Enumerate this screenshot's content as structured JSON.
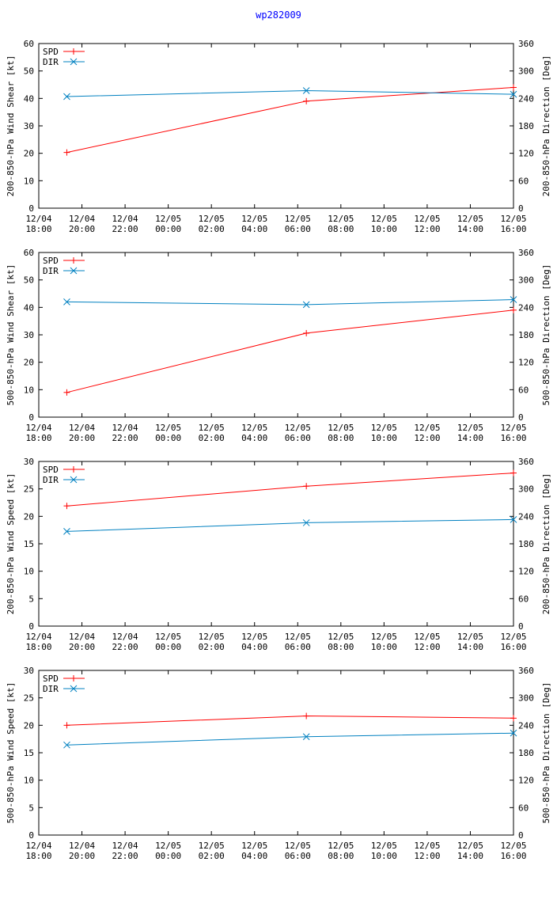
{
  "title": "wp282009",
  "colors": {
    "spd": "#ff0000",
    "dir": "#0080c0",
    "axis": "#000000",
    "title": "#0000ff"
  },
  "x_ticks": [
    [
      "12/04",
      "18:00"
    ],
    [
      "12/04",
      "20:00"
    ],
    [
      "12/04",
      "22:00"
    ],
    [
      "12/05",
      "00:00"
    ],
    [
      "12/05",
      "02:00"
    ],
    [
      "12/05",
      "04:00"
    ],
    [
      "12/05",
      "06:00"
    ],
    [
      "12/05",
      "08:00"
    ],
    [
      "12/05",
      "10:00"
    ],
    [
      "12/05",
      "12:00"
    ],
    [
      "12/05",
      "14:00"
    ],
    [
      "12/05",
      "16:00"
    ]
  ],
  "chart_data": [
    {
      "type": "line",
      "ylabel": "200-850-hPa Wind Shear [kt]",
      "y2label": "200-850-hPa Direction [Deg]",
      "ylim": [
        0,
        60
      ],
      "yticks": [
        0,
        10,
        20,
        30,
        40,
        50,
        60
      ],
      "y2lim": [
        0,
        360
      ],
      "y2ticks": [
        0,
        60,
        120,
        180,
        240,
        300,
        360
      ],
      "x": [
        19.3,
        30.4,
        40.0
      ],
      "series": [
        {
          "name": "SPD",
          "axis": "left",
          "marker": "+",
          "values": [
            20.3,
            39.0,
            44.0
          ]
        },
        {
          "name": "DIR",
          "axis": "right",
          "marker": "x",
          "values": [
            244,
            257,
            249
          ]
        }
      ]
    },
    {
      "type": "line",
      "ylabel": "500-850-hPa Wind Shear [kt]",
      "y2label": "500-850-hPa Direction [Deg]",
      "ylim": [
        0,
        60
      ],
      "yticks": [
        0,
        10,
        20,
        30,
        40,
        50,
        60
      ],
      "y2lim": [
        0,
        360
      ],
      "y2ticks": [
        0,
        60,
        120,
        180,
        240,
        300,
        360
      ],
      "x": [
        19.3,
        30.4,
        40.0
      ],
      "series": [
        {
          "name": "SPD",
          "axis": "left",
          "marker": "+",
          "values": [
            9.0,
            30.6,
            39.0
          ]
        },
        {
          "name": "DIR",
          "axis": "right",
          "marker": "x",
          "values": [
            252,
            246,
            257
          ]
        }
      ]
    },
    {
      "type": "line",
      "ylabel": "200-850-hPa Wind Speed [kt]",
      "y2label": "200-850-hPa Direction [Deg]",
      "ylim": [
        0,
        30
      ],
      "yticks": [
        0,
        5,
        10,
        15,
        20,
        25,
        30
      ],
      "y2lim": [
        0,
        360
      ],
      "y2ticks": [
        0,
        60,
        120,
        180,
        240,
        300,
        360
      ],
      "x": [
        19.3,
        30.4,
        40.0
      ],
      "series": [
        {
          "name": "SPD",
          "axis": "left",
          "marker": "+",
          "values": [
            21.9,
            25.5,
            27.9
          ]
        },
        {
          "name": "DIR",
          "axis": "right",
          "marker": "x",
          "values": [
            207,
            226,
            233
          ]
        }
      ]
    },
    {
      "type": "line",
      "ylabel": "500-850-hPa Wind Speed [kt]",
      "y2label": "500-850-hPa Direction [Deg]",
      "ylim": [
        0,
        30
      ],
      "yticks": [
        0,
        5,
        10,
        15,
        20,
        25,
        30
      ],
      "y2lim": [
        0,
        360
      ],
      "y2ticks": [
        0,
        60,
        120,
        180,
        240,
        300,
        360
      ],
      "x": [
        19.3,
        30.4,
        40.0
      ],
      "series": [
        {
          "name": "SPD",
          "axis": "left",
          "marker": "+",
          "values": [
            20.0,
            21.7,
            21.3
          ]
        },
        {
          "name": "DIR",
          "axis": "right",
          "marker": "x",
          "values": [
            197,
            215,
            223
          ]
        }
      ]
    }
  ]
}
